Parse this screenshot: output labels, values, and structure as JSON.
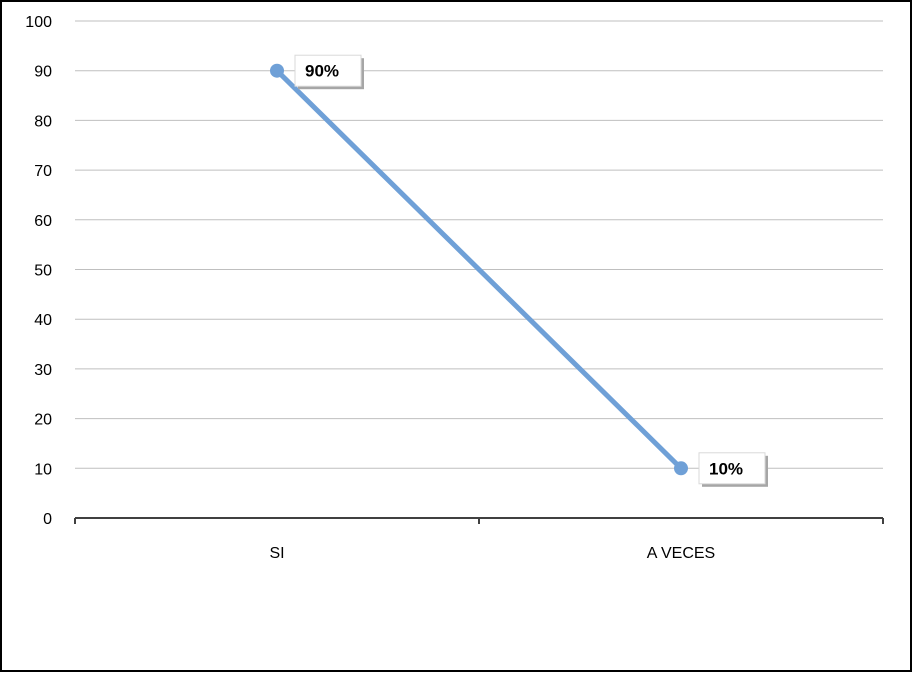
{
  "chart_data": {
    "type": "line",
    "title": "",
    "xlabel": "",
    "ylabel": "",
    "categories": [
      "SI",
      "A VECES"
    ],
    "series": [
      {
        "values": [
          90,
          10
        ],
        "color": "#6fa0d7"
      }
    ],
    "data_labels": [
      "90%",
      "10%"
    ],
    "ylim": [
      0,
      100
    ],
    "yticks": [
      "0",
      "10",
      "20",
      "30",
      "40",
      "50",
      "60",
      "70",
      "80",
      "90",
      "100"
    ],
    "grid": true,
    "legend": "none"
  }
}
